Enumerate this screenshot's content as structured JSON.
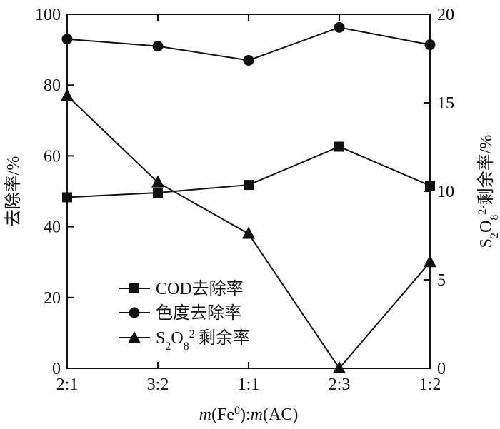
{
  "chart_data": {
    "type": "line",
    "categories": [
      "2:1",
      "3:2",
      "1:1",
      "2:3",
      "1:2"
    ],
    "xlabel": {
      "m1": "m",
      "mid": "(Fe",
      "sup": "0",
      "after": "):",
      "m2": "m",
      "end": "(AC)"
    },
    "ylabel_left": "去除率/%",
    "ylabel_right": {
      "s": "S",
      "sub2": "2",
      "o": "O",
      "sub8": "8",
      "sup": "2-",
      "rest": "剩余率/%"
    },
    "y_left": {
      "min": 0,
      "max": 100,
      "ticks": [
        0,
        20,
        40,
        60,
        80,
        100
      ]
    },
    "y_right": {
      "min": 0,
      "max": 20,
      "ticks": [
        0,
        5,
        10,
        15,
        20
      ]
    },
    "grid": false,
    "legend_position": "bottom-left",
    "series": [
      {
        "name": "COD去除率",
        "marker": "square",
        "axis": "left",
        "values": [
          48.3,
          49.6,
          51.8,
          62.6,
          51.6
        ]
      },
      {
        "name": "色度去除率",
        "marker": "circle",
        "axis": "left",
        "values": [
          93.0,
          91.0,
          87.0,
          96.3,
          91.4
        ]
      },
      {
        "name": "S2O82-剩余率",
        "name_parts": {
          "s": "S",
          "sub2": "2",
          "o": "O",
          "sub8": "8",
          "sup": "2-",
          "rest": "剩余率"
        },
        "marker": "triangle",
        "axis": "right",
        "values": [
          15.4,
          10.5,
          7.6,
          0.0,
          6.0
        ]
      }
    ],
    "colors": {
      "line": "#111111",
      "background": "#ffffff"
    }
  }
}
